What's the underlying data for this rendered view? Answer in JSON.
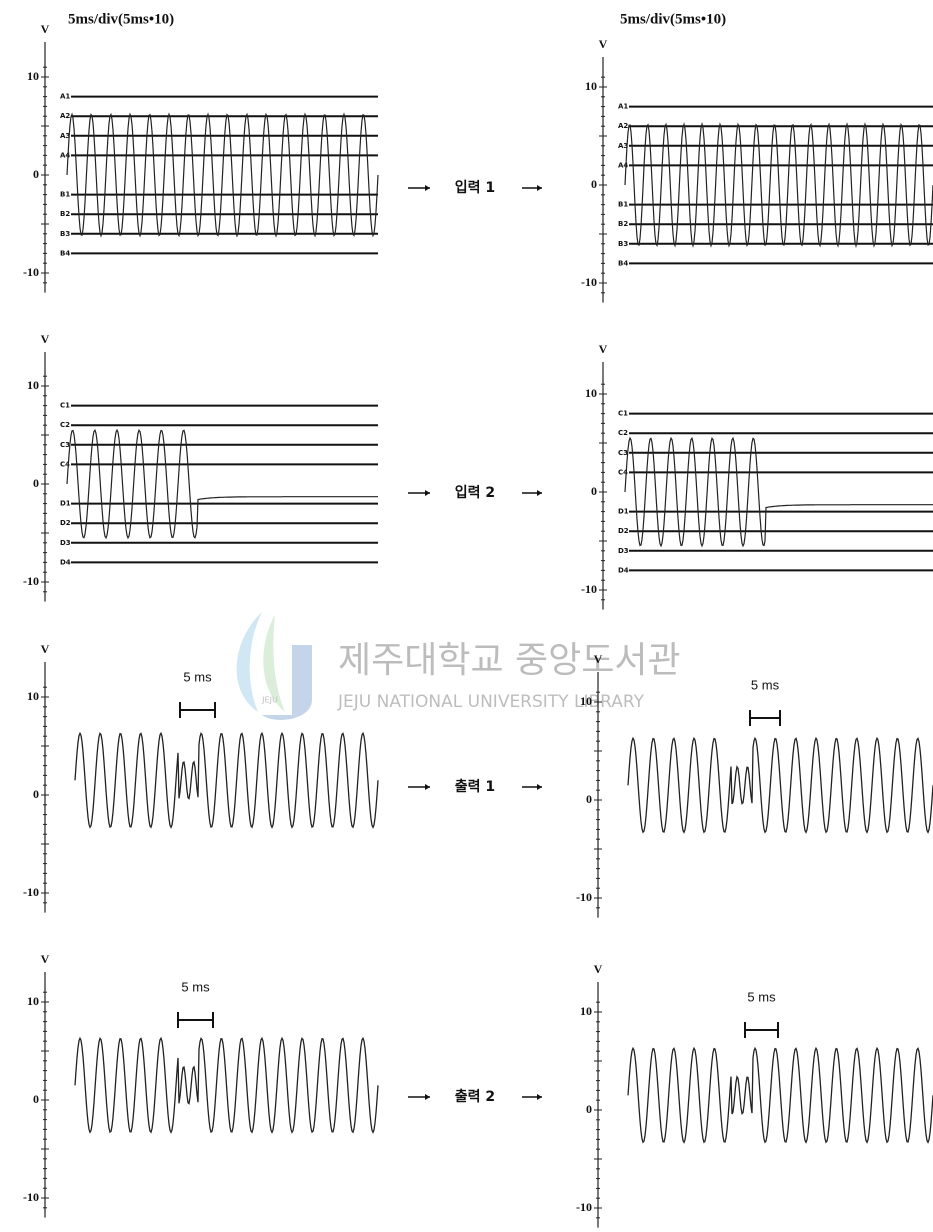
{
  "header": {
    "left": "5ms/div(5ms•10)",
    "right": "5ms/div(5ms•10)"
  },
  "rows": [
    {
      "label": "입력 1",
      "left": {
        "unit": "V",
        "ticks": [
          "10",
          "0",
          "-10"
        ],
        "levels": [
          "A1",
          "A2",
          "A3",
          "A4",
          "B1",
          "B2",
          "B3",
          "B4"
        ]
      },
      "right": {
        "unit": "V",
        "ticks": [
          "10",
          "0",
          "-10"
        ],
        "levels": [
          "A1",
          "A2",
          "A3",
          "A4",
          "B1",
          "B2",
          "B3",
          "B4"
        ]
      }
    },
    {
      "label": "입력 2",
      "left": {
        "unit": "V",
        "ticks": [
          "10",
          "0",
          "-10"
        ],
        "levels": [
          "C1",
          "C2",
          "C3",
          "C4",
          "D1",
          "D2",
          "D3",
          "D4"
        ]
      },
      "right": {
        "unit": "V",
        "ticks": [
          "10",
          "0",
          "-10"
        ],
        "levels": [
          "C1",
          "C2",
          "C3",
          "C4",
          "D1",
          "D2",
          "D3",
          "D4"
        ]
      }
    },
    {
      "label": "출력 1",
      "left": {
        "unit": "V",
        "ticks": [
          "10",
          "0",
          "-10"
        ],
        "scale_bar": "5 ms"
      },
      "right": {
        "unit": "V",
        "ticks": [
          "10",
          "0",
          "-10"
        ],
        "scale_bar": "5 ms"
      }
    },
    {
      "label": "출력 2",
      "left": {
        "unit": "V",
        "ticks": [
          "10",
          "0",
          "-10"
        ],
        "scale_bar": "5 ms"
      },
      "right": {
        "unit": "V",
        "ticks": [
          "10",
          "0",
          "-10"
        ],
        "scale_bar": "5 ms"
      }
    }
  ],
  "watermark": {
    "title": "제주대학교 중앙도서관",
    "subtitle": "JEJU NATIONAL UNIVERSITY LIBRARY",
    "logo": "JEJU"
  }
}
